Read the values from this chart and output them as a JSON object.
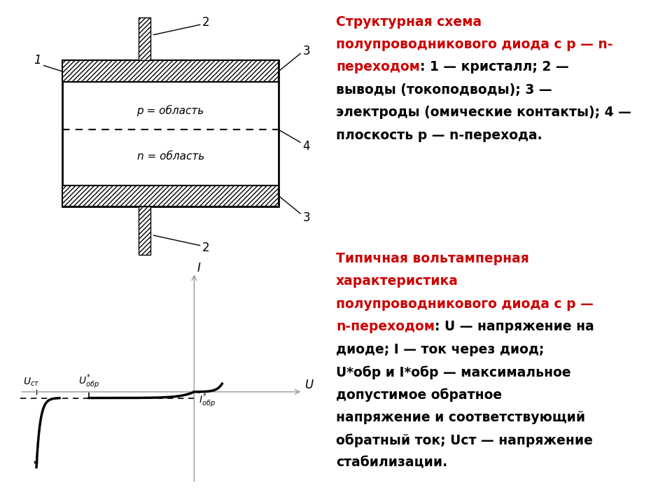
{
  "bg_color": "#ffffff",
  "bold_color": "#cc0000",
  "normal_color": "#000000",
  "text1_lines": [
    {
      "bold": "Структурная схема"
    },
    {
      "bold": "полупроводникового диода с р — n-"
    },
    {
      "bold": "переходом",
      "normal": ": 1 — кристалл; 2 —"
    },
    {
      "normal": "выводы (токоподводы); 3 —"
    },
    {
      "normal": "электроды (омические контакты); 4 —"
    },
    {
      "normal": "плоскость p — n-перехода."
    }
  ],
  "text2_lines": [
    {
      "bold": "Типичная вольтамперная"
    },
    {
      "bold": "характеристика"
    },
    {
      "bold": "полупроводникового диода с p —"
    },
    {
      "bold": "n-переходом",
      "normal": ": U — напряжение на"
    },
    {
      "normal": "диоде; I — ток через диод;"
    },
    {
      "normal": "U*обр и I*обр — максимальное"
    },
    {
      "normal": "допустимое обратное"
    },
    {
      "normal": "напряжение и соответствующий"
    },
    {
      "normal": "обратный ток; Uст — напряжение"
    },
    {
      "normal": "стабилизации."
    }
  ]
}
